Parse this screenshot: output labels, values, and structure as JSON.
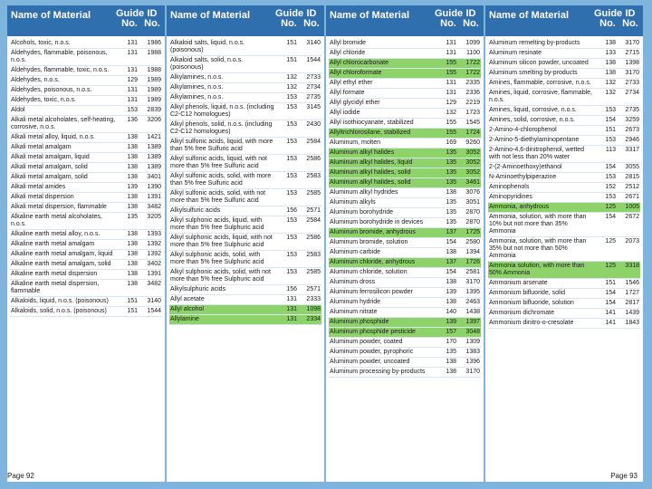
{
  "header": {
    "name": "Name of Material",
    "guide": "Guide\nNo.",
    "id": "ID\nNo."
  },
  "footer": {
    "left": "Page 92",
    "right": "Page 93"
  },
  "columns": [
    {
      "rows": [
        {
          "name": "Alcohols, toxic, n.o.s.",
          "guide": "131",
          "id": "1986"
        },
        {
          "name": "Aldehydes, flammable, poisonous, n.o.s.",
          "guide": "131",
          "id": "1988"
        },
        {
          "name": "Aldehydes, flammable, toxic, n.o.s.",
          "guide": "131",
          "id": "1988"
        },
        {
          "name": "Aldehydes, n.o.s.",
          "guide": "129",
          "id": "1989"
        },
        {
          "name": "Aldehydes, poisonous, n.o.s.",
          "guide": "131",
          "id": "1989"
        },
        {
          "name": "Aldehydes, toxic, n.o.s.",
          "guide": "131",
          "id": "1989"
        },
        {
          "name": "Aldol",
          "guide": "153",
          "id": "2839"
        },
        {
          "name": "Alkali metal alcoholates, self-heating, corrosive, n.o.s.",
          "guide": "136",
          "id": "3206"
        },
        {
          "name": "Alkali metal alloy, liquid, n.o.s.",
          "guide": "138",
          "id": "1421"
        },
        {
          "name": "Alkali metal amalgam",
          "guide": "138",
          "id": "1389"
        },
        {
          "name": "Alkali metal amalgam, liquid",
          "guide": "138",
          "id": "1389"
        },
        {
          "name": "Alkali metal amalgam, solid",
          "guide": "138",
          "id": "1389"
        },
        {
          "name": "Alkali metal amalgam, solid",
          "guide": "138",
          "id": "3401"
        },
        {
          "name": "Alkali metal amides",
          "guide": "139",
          "id": "1390"
        },
        {
          "name": "Alkali metal dispersion",
          "guide": "138",
          "id": "1391"
        },
        {
          "name": "Alkali metal dispersion, flammable",
          "guide": "138",
          "id": "3482"
        },
        {
          "name": "Alkaline earth metal alcoholates, n.o.s.",
          "guide": "135",
          "id": "3205"
        },
        {
          "name": "Alkaline earth metal alloy, n.o.s.",
          "guide": "138",
          "id": "1393"
        },
        {
          "name": "Alkaline earth metal amalgam",
          "guide": "138",
          "id": "1392"
        },
        {
          "name": "Alkaline earth metal amalgam, liquid",
          "guide": "138",
          "id": "1392"
        },
        {
          "name": "Alkaline earth metal amalgam, solid",
          "guide": "138",
          "id": "3402"
        },
        {
          "name": "Alkaline earth metal dispersion",
          "guide": "138",
          "id": "1391"
        },
        {
          "name": "Alkaline earth metal dispersion, flammable",
          "guide": "138",
          "id": "3482"
        },
        {
          "name": "Alkaloids, liquid, n.o.s. (poisonous)",
          "guide": "151",
          "id": "3140"
        },
        {
          "name": "Alkaloids, solid, n.o.s. (poisonous)",
          "guide": "151",
          "id": "1544"
        }
      ]
    },
    {
      "rows": [
        {
          "name": "Alkaloid salts, liquid, n.o.s. (poisonous)",
          "guide": "151",
          "id": "3140"
        },
        {
          "name": "Alkaloid salts, solid, n.o.s. (poisonous)",
          "guide": "151",
          "id": "1544"
        },
        {
          "name": "Alkylamines, n.o.s.",
          "guide": "132",
          "id": "2733"
        },
        {
          "name": "Alkylamines, n.o.s.",
          "guide": "132",
          "id": "2734"
        },
        {
          "name": "Alkylamines, n.o.s.",
          "guide": "153",
          "id": "2735"
        },
        {
          "name": "Alkyl phenols, liquid, n.o.s. (including C2-C12 homologues)",
          "guide": "153",
          "id": "3145"
        },
        {
          "name": "Alkyl phenols, solid, n.o.s. (including C2-C12 homologues)",
          "guide": "153",
          "id": "2430"
        },
        {
          "name": "Alkyl sulfonic acids, liquid, with more than 5% free Sulfuric acid",
          "guide": "153",
          "id": "2584"
        },
        {
          "name": "Alkyl sulfonic acids, liquid, with not more than 5% free Sulfuric acid",
          "guide": "153",
          "id": "2586"
        },
        {
          "name": "Alkyl sulfonic acids, solid, with more than 5% free Sulfuric acid",
          "guide": "153",
          "id": "2583"
        },
        {
          "name": "Alkyl sulfonic acids, solid, with not more than 5% free Sulfuric acid",
          "guide": "153",
          "id": "2585"
        },
        {
          "name": "Alkylsulfuric acids",
          "guide": "156",
          "id": "2571"
        },
        {
          "name": "Alkyl sulphonic acids, liquid, with more than 5% free Sulphuric acid",
          "guide": "153",
          "id": "2584"
        },
        {
          "name": "Alkyl sulphonic acids, liquid, with not more than 5% free Sulphuric acid",
          "guide": "153",
          "id": "2586"
        },
        {
          "name": "Alkyl sulphonic acids, solid, with more than 5% free Sulphuric acid",
          "guide": "153",
          "id": "2583"
        },
        {
          "name": "Alkyl sulphonic acids, solid, with not more than 5% free Sulphuric acid",
          "guide": "153",
          "id": "2585"
        },
        {
          "name": "Alkylsulphuric acids",
          "guide": "156",
          "id": "2571"
        },
        {
          "name": "Allyl acetate",
          "guide": "131",
          "id": "2333"
        },
        {
          "name": "Allyl alcohol",
          "guide": "131",
          "id": "1098",
          "hl": true
        },
        {
          "name": "Allylamine",
          "guide": "131",
          "id": "2334",
          "hl": true
        }
      ]
    },
    {
      "rows": [
        {
          "name": "Allyl bromide",
          "guide": "131",
          "id": "1099"
        },
        {
          "name": "Allyl chloride",
          "guide": "131",
          "id": "1100"
        },
        {
          "name": "Allyl chlorocarbonate",
          "guide": "155",
          "id": "1722",
          "hl": true
        },
        {
          "name": "Allyl chloroformate",
          "guide": "155",
          "id": "1722",
          "hl": true
        },
        {
          "name": "Allyl ethyl ether",
          "guide": "131",
          "id": "2335"
        },
        {
          "name": "Allyl formate",
          "guide": "131",
          "id": "2336"
        },
        {
          "name": "Allyl glycidyl ether",
          "guide": "129",
          "id": "2219"
        },
        {
          "name": "Allyl iodide",
          "guide": "132",
          "id": "1723"
        },
        {
          "name": "Allyl isothiocyanate, stabilized",
          "guide": "155",
          "id": "1545"
        },
        {
          "name": "Allyltrichlorosilane, stabilized",
          "guide": "155",
          "id": "1724",
          "hl": true
        },
        {
          "name": "Aluminum, molten",
          "guide": "169",
          "id": "9260"
        },
        {
          "name": "Aluminum alkyl halides",
          "guide": "135",
          "id": "3052",
          "hl": true
        },
        {
          "name": "Aluminum alkyl halides, liquid",
          "guide": "135",
          "id": "3052",
          "hl": true
        },
        {
          "name": "Aluminum alkyl halides, solid",
          "guide": "135",
          "id": "3052",
          "hl": true
        },
        {
          "name": "Aluminum alkyl halides, solid",
          "guide": "135",
          "id": "3461",
          "hl": true
        },
        {
          "name": "Aluminum alkyl hydrides",
          "guide": "138",
          "id": "3076"
        },
        {
          "name": "Aluminum alkyls",
          "guide": "135",
          "id": "3051"
        },
        {
          "name": "Aluminum borohydride",
          "guide": "135",
          "id": "2870"
        },
        {
          "name": "Aluminum borohydride in devices",
          "guide": "135",
          "id": "2870"
        },
        {
          "name": "Aluminum bromide, anhydrous",
          "guide": "137",
          "id": "1725",
          "hl": true
        },
        {
          "name": "Aluminum bromide, solution",
          "guide": "154",
          "id": "2580"
        },
        {
          "name": "Aluminum carbide",
          "guide": "138",
          "id": "1394"
        },
        {
          "name": "Aluminum chloride, anhydrous",
          "guide": "137",
          "id": "1726",
          "hl": true
        },
        {
          "name": "Aluminum chloride, solution",
          "guide": "154",
          "id": "2581"
        },
        {
          "name": "Aluminum dross",
          "guide": "138",
          "id": "3170"
        },
        {
          "name": "Aluminum ferrosilicon powder",
          "guide": "139",
          "id": "1395"
        },
        {
          "name": "Aluminum hydride",
          "guide": "138",
          "id": "2463"
        },
        {
          "name": "Aluminum nitrate",
          "guide": "140",
          "id": "1438"
        },
        {
          "name": "Aluminum phosphide",
          "guide": "139",
          "id": "1397",
          "hl": true
        },
        {
          "name": "Aluminum phosphide pesticide",
          "guide": "157",
          "id": "3048",
          "hl": true
        },
        {
          "name": "Aluminum powder, coated",
          "guide": "170",
          "id": "1309"
        },
        {
          "name": "Aluminum powder, pyrophoric",
          "guide": "135",
          "id": "1383"
        },
        {
          "name": "Aluminum powder, uncoated",
          "guide": "138",
          "id": "1396"
        },
        {
          "name": "Aluminum processing by-products",
          "guide": "138",
          "id": "3170"
        }
      ]
    },
    {
      "rows": [
        {
          "name": "Aluminum remelting by-products",
          "guide": "138",
          "id": "3170"
        },
        {
          "name": "Aluminum resinate",
          "guide": "133",
          "id": "2715"
        },
        {
          "name": "Aluminum silicon powder, uncoated",
          "guide": "138",
          "id": "1398"
        },
        {
          "name": "Aluminum smelting by-products",
          "guide": "138",
          "id": "3170"
        },
        {
          "name": "Amines, flammable, corrosive, n.o.s.",
          "guide": "132",
          "id": "2733"
        },
        {
          "name": "Amines, liquid, corrosive, flammable, n.o.s.",
          "guide": "132",
          "id": "2734"
        },
        {
          "name": "Amines, liquid, corrosive, n.o.s.",
          "guide": "153",
          "id": "2735"
        },
        {
          "name": "Amines, solid, corrosive, n.o.s.",
          "guide": "154",
          "id": "3259"
        },
        {
          "name": "2-Amino-4-chlorophenol",
          "guide": "151",
          "id": "2673"
        },
        {
          "name": "2-Amino-5-diethylaminopentane",
          "guide": "153",
          "id": "2946"
        },
        {
          "name": "2-Amino-4,6-dinitrophenol, wetted with not less than 20% water",
          "guide": "113",
          "id": "3317"
        },
        {
          "name": "2-(2-Aminoethoxy)ethanol",
          "guide": "154",
          "id": "3055"
        },
        {
          "name": "N-Aminoethylpiperazine",
          "guide": "153",
          "id": "2815"
        },
        {
          "name": "Aminophenols",
          "guide": "152",
          "id": "2512"
        },
        {
          "name": "Aminopyridines",
          "guide": "153",
          "id": "2671"
        },
        {
          "name": "Ammonia, anhydrous",
          "guide": "125",
          "id": "1005",
          "hl": true
        },
        {
          "name": "Ammonia, solution, with more than 10% but not more than 35% Ammonia",
          "guide": "154",
          "id": "2672"
        },
        {
          "name": "Ammonia, solution, with more than 35% but not more than 50% Ammonia",
          "guide": "125",
          "id": "2073"
        },
        {
          "name": "Ammonia solution, with more than 50% Ammonia",
          "guide": "125",
          "id": "3318",
          "hl": true
        },
        {
          "name": "Ammonium arsenate",
          "guide": "151",
          "id": "1546"
        },
        {
          "name": "Ammonium bifluoride, solid",
          "guide": "154",
          "id": "1727"
        },
        {
          "name": "Ammonium bifluoride, solution",
          "guide": "154",
          "id": "2817"
        },
        {
          "name": "Ammonium dichromate",
          "guide": "141",
          "id": "1439"
        },
        {
          "name": "Ammonium dinitro-o-cresolate",
          "guide": "141",
          "id": "1843"
        }
      ]
    }
  ]
}
